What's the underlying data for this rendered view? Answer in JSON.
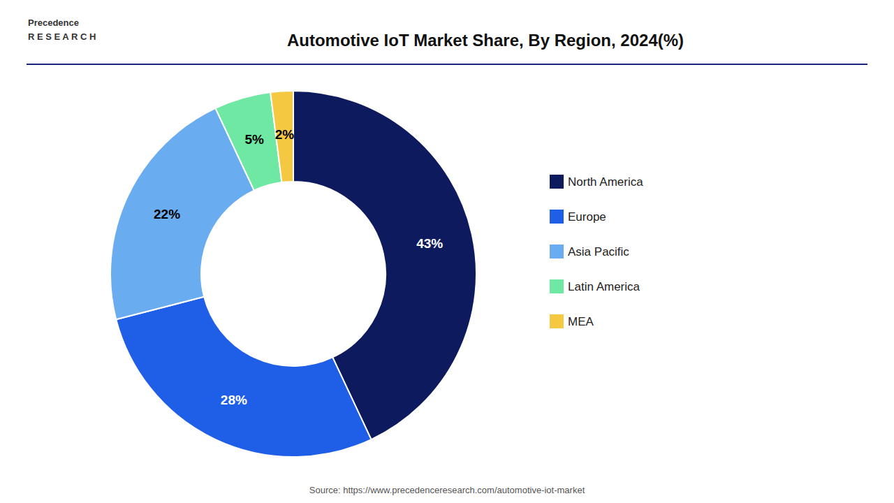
{
  "chart_data": {
    "type": "pie",
    "title": "Automotive IoT Market Share, By Region, 2024(%)",
    "categories": [
      "North America",
      "Europe",
      "Asia Pacific",
      "Latin America",
      "MEA"
    ],
    "values": [
      43,
      28,
      22,
      5,
      2
    ],
    "value_labels": [
      "43%",
      "28%",
      "22%",
      "5%",
      "2%"
    ],
    "colors": [
      "#0d1b5e",
      "#1f5fe8",
      "#6aacf0",
      "#6ee8a2",
      "#f5c842"
    ],
    "data_labels": true,
    "legend": "right",
    "annotations": [
      "Precedence\nR E S E A R C H",
      "Source: https://www.precedenceresearch.com/automotive-iot-market"
    ]
  }
}
